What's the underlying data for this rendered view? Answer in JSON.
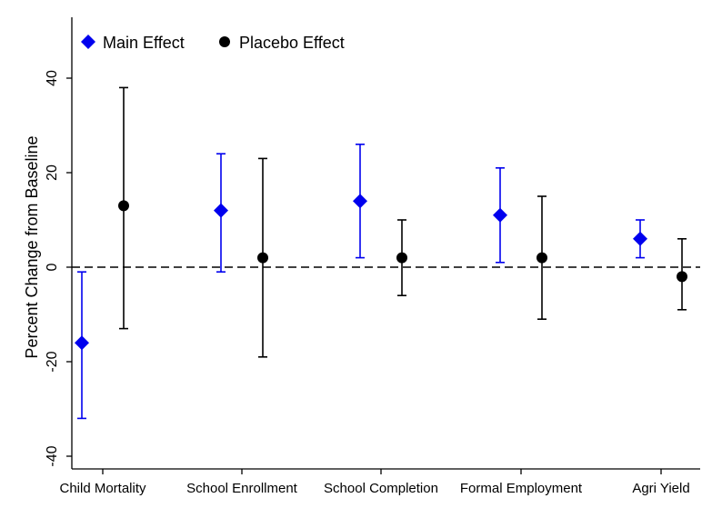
{
  "chart_data": {
    "type": "scatter",
    "ylabel": "Percent Change from Baseline",
    "xlabel": "",
    "categories": [
      "Child Mortality",
      "School Enrollment",
      "School Completion",
      "Formal Employment",
      "Agri Yield"
    ],
    "ylim": [
      -42,
      52
    ],
    "yticks": [
      -40,
      -20,
      0,
      20,
      40
    ],
    "reference_line": {
      "y": 0,
      "style": "dashed"
    },
    "legend": {
      "placement": "top-left",
      "orientation": "horizontal"
    },
    "grid": false,
    "series": [
      {
        "name": "Main Effect",
        "marker": "diamond",
        "color": "#0000ee",
        "points": [
          {
            "category": "Child Mortality",
            "y": -16,
            "lo": -32,
            "hi": -1
          },
          {
            "category": "School Enrollment",
            "y": 12,
            "lo": -1,
            "hi": 24
          },
          {
            "category": "School Completion",
            "y": 14,
            "lo": 2,
            "hi": 26
          },
          {
            "category": "Formal Employment",
            "y": 11,
            "lo": 1,
            "hi": 21
          },
          {
            "category": "Agri Yield",
            "y": 6,
            "lo": 2,
            "hi": 10
          }
        ]
      },
      {
        "name": "Placebo Effect",
        "marker": "circle",
        "color": "#000000",
        "points": [
          {
            "category": "Child Mortality",
            "y": 13,
            "lo": -13,
            "hi": 38
          },
          {
            "category": "School Enrollment",
            "y": 2,
            "lo": -19,
            "hi": 23
          },
          {
            "category": "School Completion",
            "y": 2,
            "lo": -6,
            "hi": 10
          },
          {
            "category": "Formal Employment",
            "y": 2,
            "lo": -11,
            "hi": 15
          },
          {
            "category": "Agri Yield",
            "y": -2,
            "lo": -9,
            "hi": 6
          }
        ]
      }
    ]
  }
}
